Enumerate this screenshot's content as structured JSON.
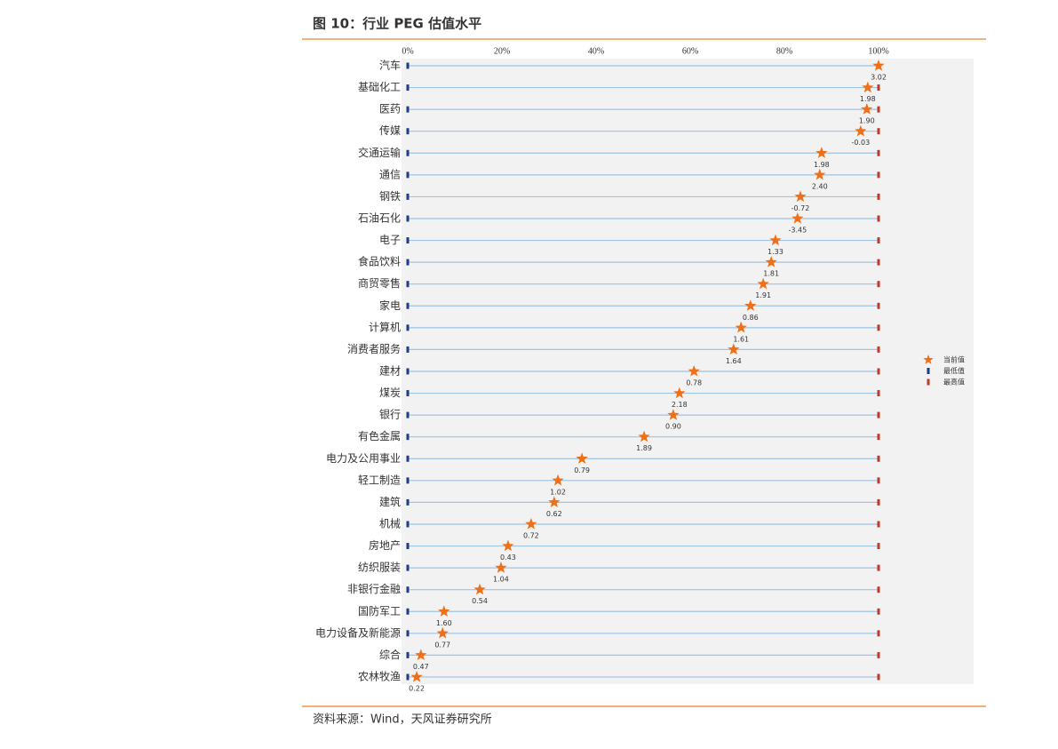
{
  "chart_data": {
    "type": "dot-range",
    "title": "图 10：行业 PEG 估值水平",
    "source": "资料来源：Wind，天风证券研究所",
    "categories": [
      "汽车",
      "基础化工",
      "医药",
      "传媒",
      "交通运输",
      "通信",
      "钢铁",
      "石油石化",
      "电子",
      "食品饮料",
      "商贸零售",
      "家电",
      "计算机",
      "消费者服务",
      "建材",
      "煤炭",
      "银行",
      "有色金属",
      "电力及公用事业",
      "轻工制造",
      "建筑",
      "机械",
      "房地产",
      "纺织服装",
      "非银行金融",
      "国防军工",
      "电力设备及新能源",
      "综合",
      "农林牧渔"
    ],
    "series": [
      {
        "name": "当前值",
        "color": "#f07018",
        "values": [
          100,
          97.7,
          97.5,
          96.2,
          87.9,
          87.5,
          83.4,
          82.8,
          78.1,
          77.2,
          75.5,
          72.8,
          70.8,
          69.2,
          60.8,
          57.7,
          56.4,
          50.2,
          37.0,
          31.9,
          31.1,
          26.2,
          21.3,
          19.8,
          15.3,
          7.7,
          7.4,
          2.8,
          1.9
        ],
        "point_labels": [
          "3.02",
          "1.98",
          "1.90",
          "-0.03",
          "1.98",
          "2.40",
          "-0.72",
          "-3.45",
          "1.33",
          "1.81",
          "1.91",
          "0.86",
          "1.61",
          "1.64",
          "0.78",
          "2.18",
          "0.90",
          "1.89",
          "0.79",
          "1.02",
          "0.62",
          "0.72",
          "0.43",
          "1.04",
          "0.54",
          "1.60",
          "0.77",
          "0.47",
          "0.22"
        ]
      },
      {
        "name": "最低值",
        "color": "#1f3c88",
        "values": [
          0,
          0,
          0,
          0,
          0,
          0,
          0,
          0,
          0,
          0,
          0,
          0,
          0,
          0,
          0,
          0,
          0,
          0,
          0,
          0,
          0,
          0,
          0,
          0,
          0,
          0,
          0,
          0,
          0
        ]
      },
      {
        "name": "最高值",
        "color": "#c0392b",
        "values": [
          100,
          100,
          100,
          100,
          100,
          100,
          100,
          100,
          100,
          100,
          100,
          100,
          100,
          100,
          100,
          100,
          100,
          100,
          100,
          100,
          100,
          100,
          100,
          100,
          100,
          100,
          100,
          100,
          100
        ]
      }
    ],
    "xlim": [
      0,
      100
    ],
    "xticks": [
      {
        "value": 0,
        "label": "0%"
      },
      {
        "value": 20,
        "label": "20%"
      },
      {
        "value": 40,
        "label": "40%"
      },
      {
        "value": 60,
        "label": "60%"
      },
      {
        "value": 80,
        "label": "80%"
      },
      {
        "value": 100,
        "label": "100%"
      }
    ],
    "legend": "right"
  }
}
